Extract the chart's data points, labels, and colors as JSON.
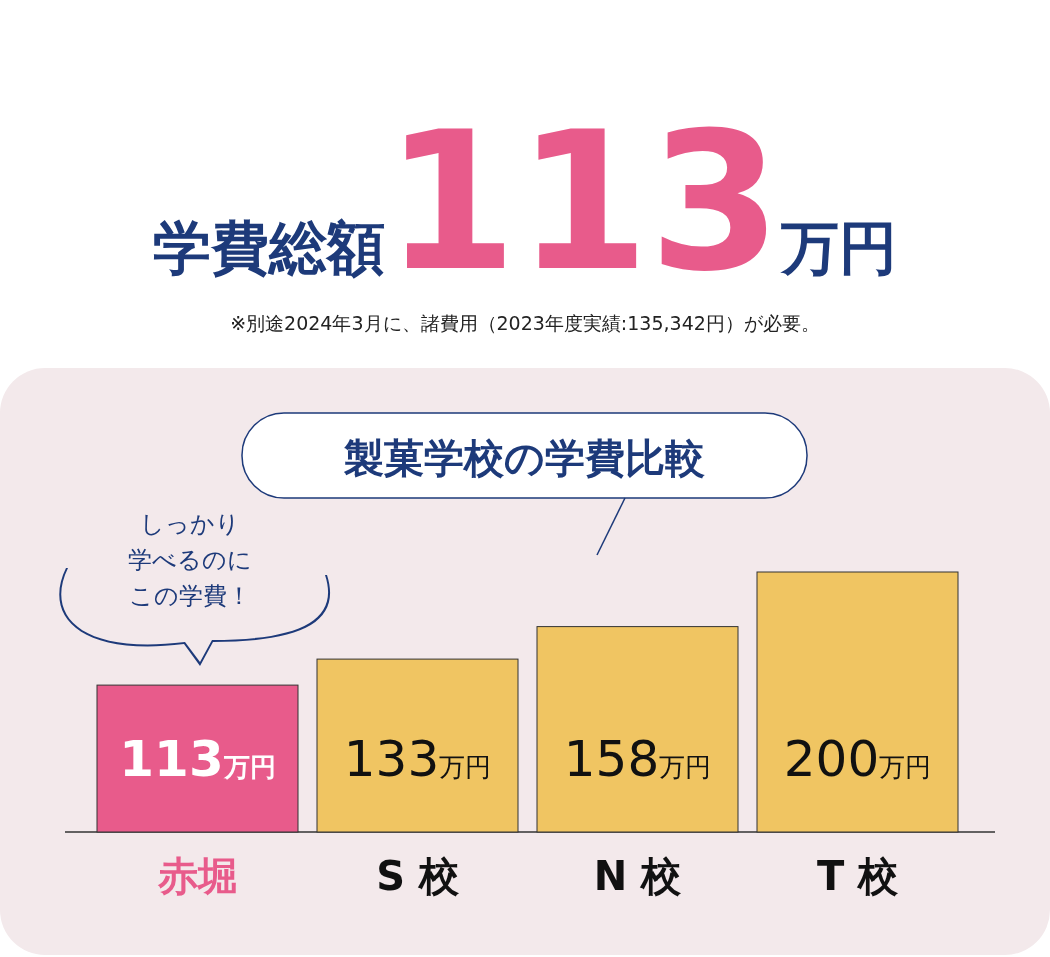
{
  "chart_data": {
    "type": "bar",
    "title": "学費総額113万円",
    "subtitle": "製菓学校の学費比較",
    "annotations": [
      "※別途2024年3月に、諸費用（2023年度実績:135,342円）が必要。",
      "しっかり",
      "学べるのに",
      "この学費！"
    ],
    "categories": [
      "赤堀",
      "S 校",
      "N 校",
      "T 校"
    ],
    "values": [
      113,
      133,
      158,
      200
    ],
    "colors": [
      "#e85b8b",
      "#f0c562",
      "#f0c562",
      "#f0c562"
    ],
    "value_labels": [
      "113万円",
      "133万円",
      "158万円",
      "200万円"
    ]
  }
}
